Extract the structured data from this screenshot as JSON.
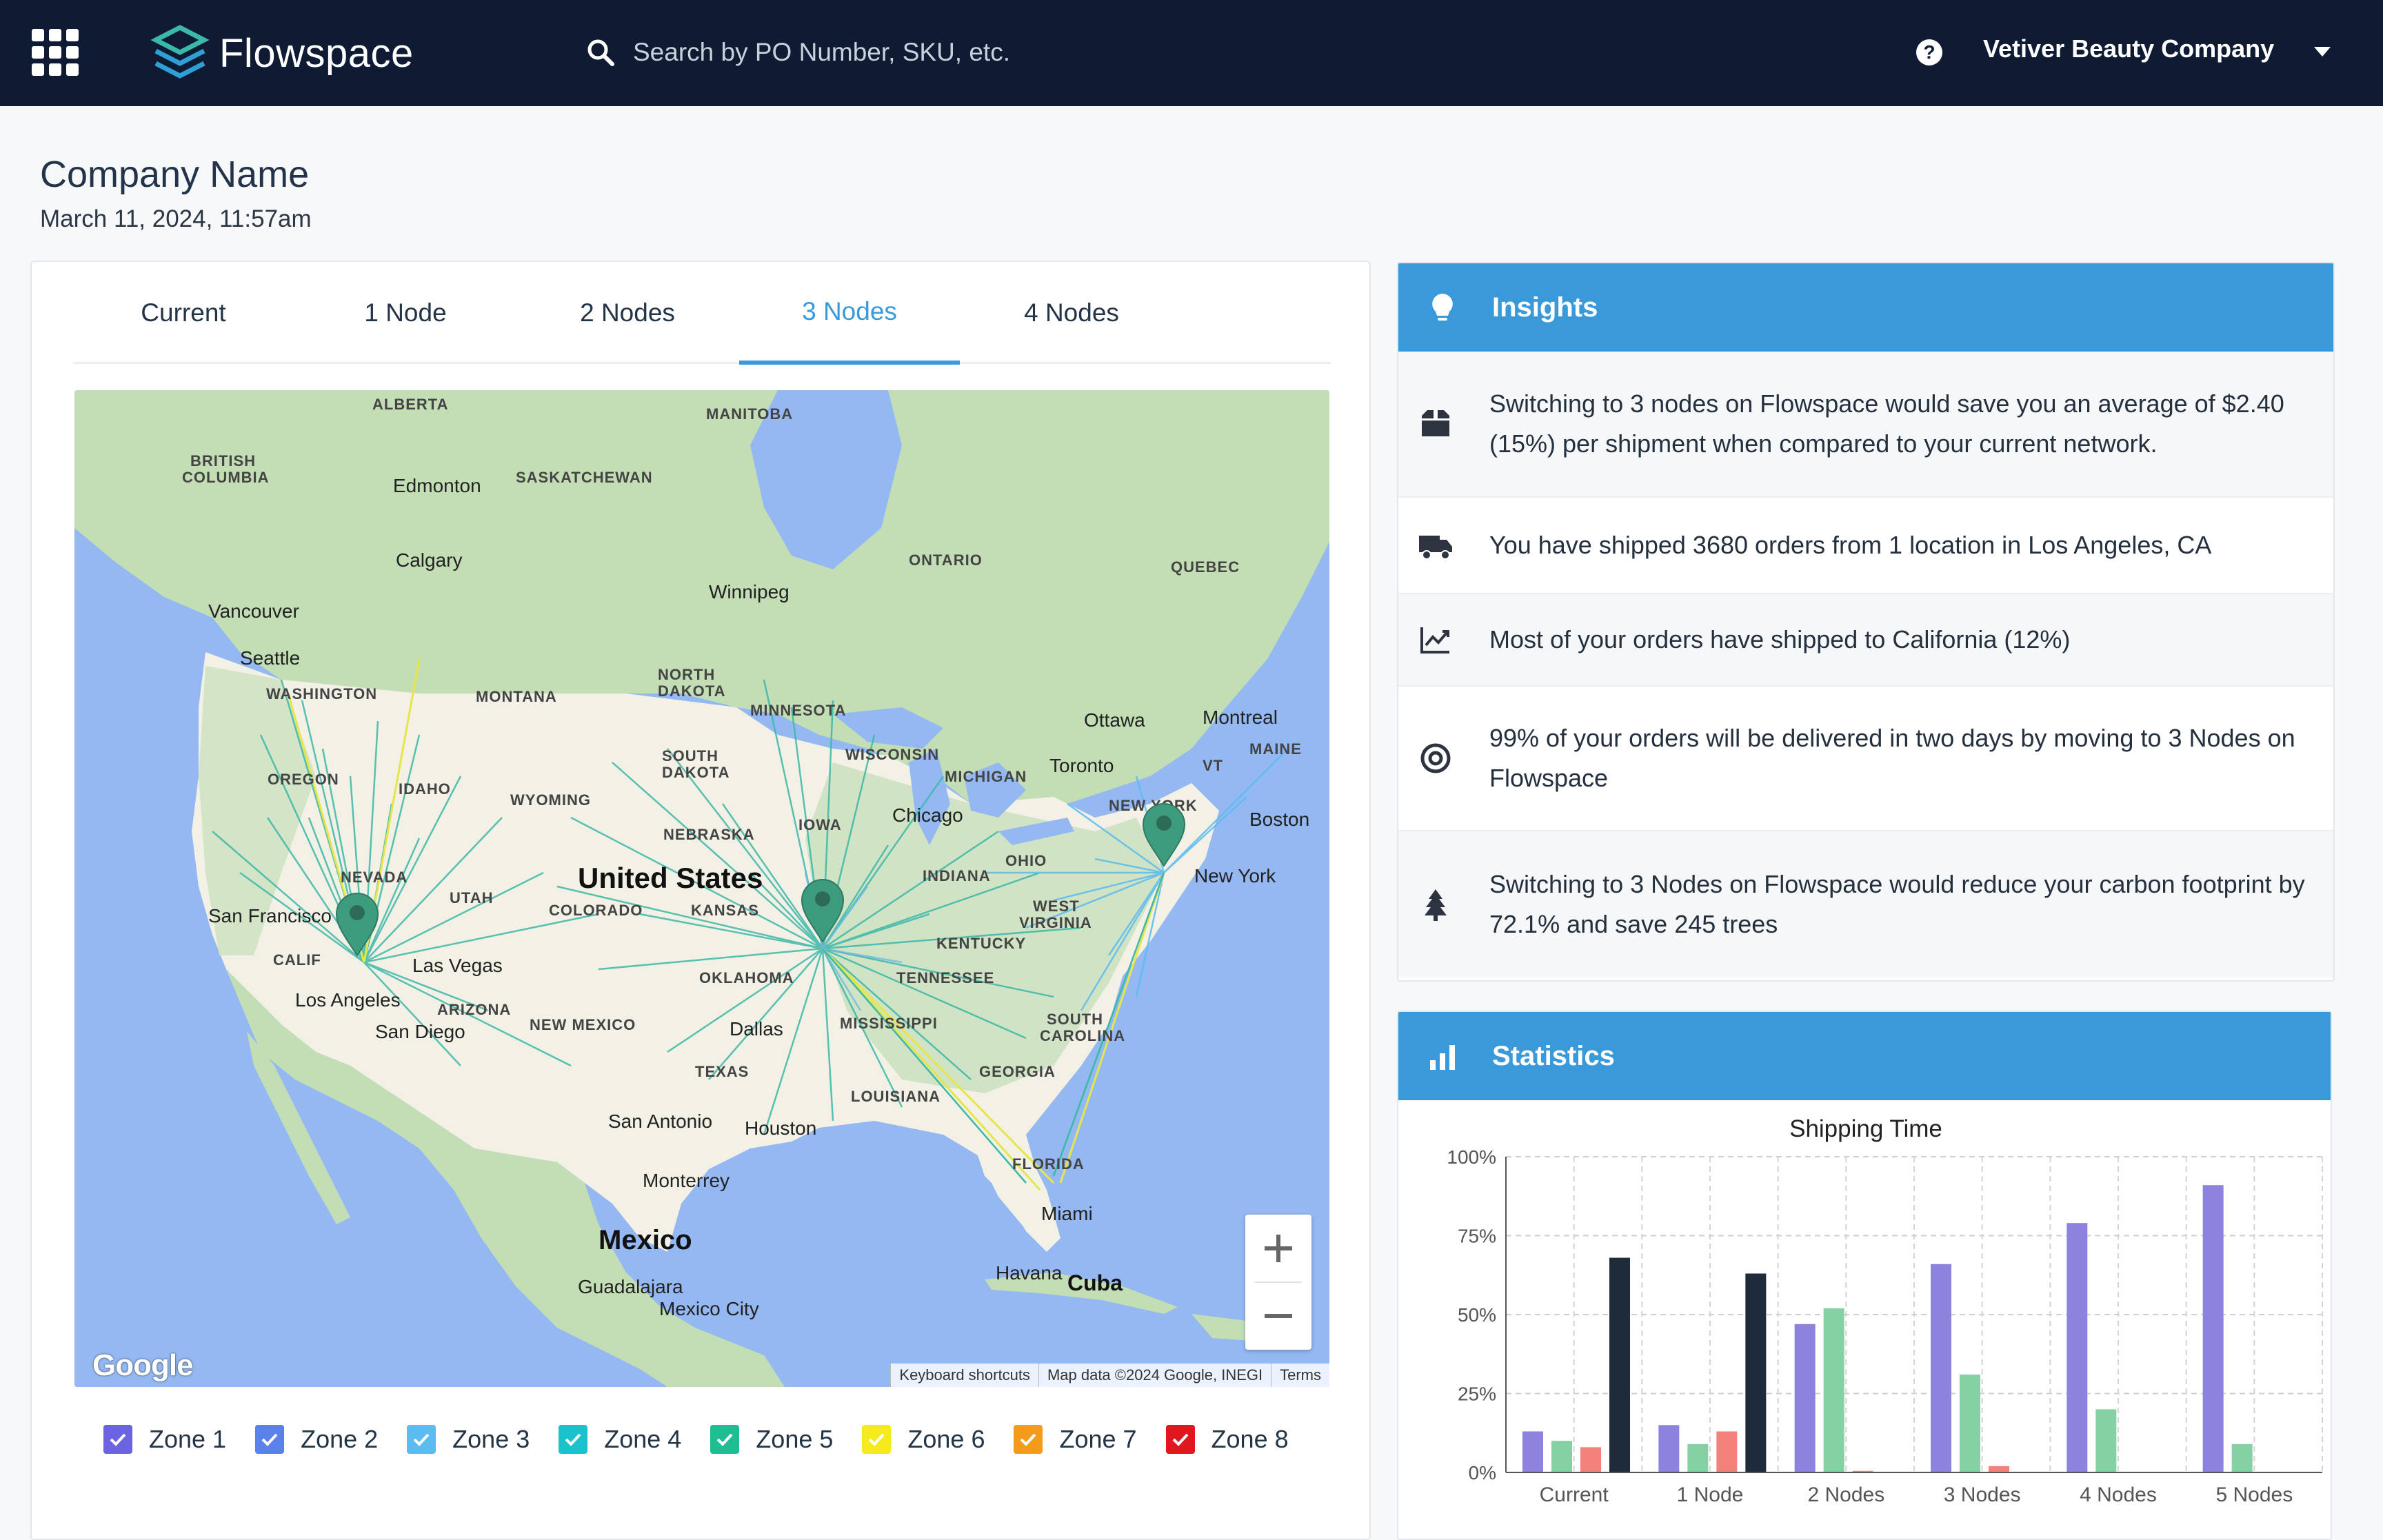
{
  "header": {
    "brand": "Flowspace",
    "search_placeholder": "Search by PO Number, SKU, etc.",
    "company": "Vetiver Beauty Company"
  },
  "page": {
    "title": "Company Name",
    "date": "March 11, 2024, 11:57am"
  },
  "tabs": [
    {
      "label": "Current",
      "active": false
    },
    {
      "label": "1 Node",
      "active": false
    },
    {
      "label": "2 Nodes",
      "active": false
    },
    {
      "label": "3 Nodes",
      "active": true
    },
    {
      "label": "4 Nodes",
      "active": false
    }
  ],
  "map": {
    "footer": [
      "Keyboard shortcuts",
      "Map data ©2024 Google, INEGI",
      "Terms"
    ],
    "google": "Google",
    "labels": [
      {
        "text": "ALBERTA"
      },
      {
        "text": "MANITOBA"
      },
      {
        "text": "BRITISH"
      },
      {
        "text": "COLUMBIA"
      },
      {
        "text": "Edmonton"
      },
      {
        "text": "SASKATCHEWAN"
      },
      {
        "text": "Calgary"
      },
      {
        "text": "ONTARIO"
      },
      {
        "text": "QUEBEC"
      },
      {
        "text": "Winnipeg"
      },
      {
        "text": "Vancouver"
      },
      {
        "text": "Seattle"
      },
      {
        "text": "WASHINGTON"
      },
      {
        "text": "MONTANA"
      },
      {
        "text": "NORTH"
      },
      {
        "text": "DAKOTA"
      },
      {
        "text": "MINNESOTA"
      },
      {
        "text": "Ottawa"
      },
      {
        "text": "Montreal"
      },
      {
        "text": "MAINE"
      },
      {
        "text": "WISCONSIN"
      },
      {
        "text": "SOUTH"
      },
      {
        "text": "DAKOTA"
      },
      {
        "text": "OREGON"
      },
      {
        "text": "IDAHO"
      },
      {
        "text": "WYOMING"
      },
      {
        "text": "MICHIGAN"
      },
      {
        "text": "Toronto"
      },
      {
        "text": "VT"
      },
      {
        "text": "NEW YORK"
      },
      {
        "text": "Boston"
      },
      {
        "text": "Chicago"
      },
      {
        "text": "NEBRASKA"
      },
      {
        "text": "IOWA"
      },
      {
        "text": "New York"
      },
      {
        "text": "NEVADA"
      },
      {
        "text": "UTAH"
      },
      {
        "text": "United States"
      },
      {
        "text": "COLORADO"
      },
      {
        "text": "KANSAS"
      },
      {
        "text": "INDIANA"
      },
      {
        "text": "OHIO"
      },
      {
        "text": "San Francisco"
      },
      {
        "text": "WEST"
      },
      {
        "text": "VIRGINIA"
      },
      {
        "text": "KENTUCKY"
      },
      {
        "text": "CALIF"
      },
      {
        "text": "Las Vegas"
      },
      {
        "text": "Los Angeles"
      },
      {
        "text": "ARIZONA"
      },
      {
        "text": "OKLAHOMA"
      },
      {
        "text": "TENNESSEE"
      },
      {
        "text": "San Diego"
      },
      {
        "text": "NEW MEXICO"
      },
      {
        "text": "Dallas"
      },
      {
        "text": "MISSISSIPPI"
      },
      {
        "text": "SOUTH"
      },
      {
        "text": "CAROLINA"
      },
      {
        "text": "GEORGIA"
      },
      {
        "text": "TEXAS"
      },
      {
        "text": "LOUISIANA"
      },
      {
        "text": "San Antonio"
      },
      {
        "text": "Houston"
      },
      {
        "text": "FLORIDA"
      },
      {
        "text": "Monterrey"
      },
      {
        "text": "Miami"
      },
      {
        "text": "Mexico"
      },
      {
        "text": "Havana"
      },
      {
        "text": "Cuba"
      },
      {
        "text": "Guadalajara"
      },
      {
        "text": "Mexico City"
      }
    ]
  },
  "legend": [
    {
      "label": "Zone 1",
      "color": "#6c63e3"
    },
    {
      "label": "Zone 2",
      "color": "#5b82ea"
    },
    {
      "label": "Zone 3",
      "color": "#5bbcf0"
    },
    {
      "label": "Zone 4",
      "color": "#19c3c9"
    },
    {
      "label": "Zone 5",
      "color": "#1fbe92"
    },
    {
      "label": "Zone 6",
      "color": "#f5ea1b"
    },
    {
      "label": "Zone 7",
      "color": "#f59b1b"
    },
    {
      "label": "Zone 8",
      "color": "#e0171f"
    }
  ],
  "insights": {
    "title": "Insights",
    "items": [
      {
        "icon": "box-icon",
        "text": "Switching to 3 nodes on Flowspace would save you an average of $2.40 (15%) per shipment when compared to your current network."
      },
      {
        "icon": "truck-icon",
        "text": "You have shipped 3680 orders from 1 location in Los Angeles, CA"
      },
      {
        "icon": "chart-line-icon",
        "text": "Most of your orders have shipped to California (12%)"
      },
      {
        "icon": "target-icon",
        "text": "99% of your orders will be delivered in two days by moving to 3 Nodes on Flowspace"
      },
      {
        "icon": "tree-icon",
        "text": "Switching to 3 Nodes on Flowspace would reduce your carbon footprint by 72.1% and save 245 trees"
      }
    ]
  },
  "statistics": {
    "title": "Statistics"
  },
  "chart_data": {
    "type": "bar",
    "title": "Shipping Time",
    "categories": [
      "Current",
      "1 Node",
      "2 Nodes",
      "3 Nodes",
      "4 Nodes",
      "5 Nodes"
    ],
    "yticks": [
      "0%",
      "25%",
      "50%",
      "75%",
      "100%"
    ],
    "ylim": [
      0,
      100
    ],
    "grid": true,
    "series": [
      {
        "color": "#8b83de",
        "values": [
          13,
          15,
          47,
          66,
          79,
          91
        ]
      },
      {
        "color": "#86d1a3",
        "values": [
          10,
          9,
          52,
          31,
          20,
          9
        ]
      },
      {
        "color": "#f5827a",
        "values": [
          8,
          13,
          0.5,
          2,
          0,
          0
        ]
      },
      {
        "color": "#1d2b3a",
        "values": [
          68,
          63,
          0,
          0,
          0,
          0
        ]
      }
    ]
  }
}
